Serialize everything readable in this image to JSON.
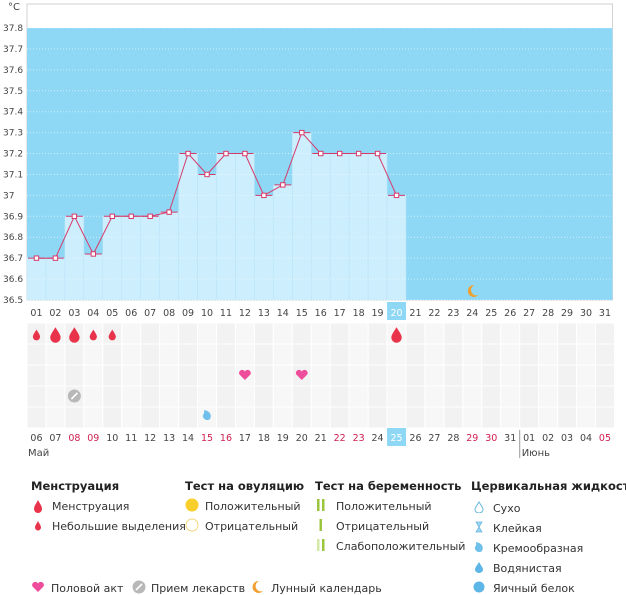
{
  "chart_data": {
    "type": "line",
    "unit": "°C",
    "ylim": [
      36.5,
      37.8
    ],
    "yticks": [
      "37.8",
      "37.7",
      "37.6",
      "37.5",
      "37.4",
      "37.3",
      "37.2",
      "37.1",
      "37",
      "36.9",
      "36.8",
      "36.7",
      "36.6",
      "36.5"
    ],
    "x_top": [
      "01",
      "02",
      "03",
      "04",
      "05",
      "06",
      "07",
      "08",
      "09",
      "10",
      "11",
      "12",
      "13",
      "14",
      "15",
      "16",
      "17",
      "18",
      "19",
      "20",
      "21",
      "22",
      "23",
      "24",
      "25",
      "26",
      "27",
      "28",
      "29",
      "30",
      "31"
    ],
    "x_bottom": [
      "06",
      "07",
      "08",
      "09",
      "10",
      "11",
      "12",
      "13",
      "14",
      "15",
      "16",
      "17",
      "18",
      "19",
      "20",
      "21",
      "22",
      "23",
      "24",
      "25",
      "26",
      "27",
      "28",
      "29",
      "30",
      "31",
      "01",
      "02",
      "03",
      "04",
      "05"
    ],
    "x_bottom_red": [
      2,
      3,
      9,
      10,
      16,
      17,
      23,
      24,
      30
    ],
    "x_top_highlight": 19,
    "x_bottom_highlight": 19,
    "series": [
      {
        "values": [
          36.7,
          36.7,
          36.9,
          36.72,
          36.9,
          36.9,
          36.9,
          36.92,
          37.2,
          37.1,
          37.2,
          37.2,
          37.0,
          37.05,
          37.3,
          37.2,
          37.2,
          37.2,
          37.2,
          37.0
        ]
      }
    ],
    "months": [
      "Май",
      "Июнь"
    ],
    "menstruation_days": [
      0,
      1,
      2,
      3,
      4,
      19
    ],
    "menstruation_large": [
      1,
      2,
      19
    ],
    "intercourse_days": [
      11,
      14
    ],
    "medication_days": [
      2
    ],
    "fluid_days": [
      9
    ],
    "moon_day": 23
  },
  "legend": {
    "menstruation": {
      "title": "Менструация",
      "items": [
        "Менструация",
        "Небольшие выделения"
      ]
    },
    "ovulation": {
      "title": "Тест на овуляцию",
      "items": [
        "Положительный",
        "Отрицательный"
      ]
    },
    "pregnancy": {
      "title": "Тест на беременность",
      "items": [
        "Положительный",
        "Отрицательный",
        "Слабоположительный"
      ]
    },
    "fluid": {
      "title": "Цервикальная жидкость",
      "items": [
        "Сухо",
        "Клейкая",
        "Кремообразная",
        "Водянистая",
        "Яичный белок"
      ]
    },
    "bottom": [
      "Половой акт",
      "Прием лекарств",
      "Лунный календарь"
    ]
  },
  "colors": {
    "plot_bg": "#8fd8f5",
    "bar": "#cdeefc",
    "line": "#d63a6b",
    "marker_red": "#e8334a",
    "heart": "#ee4d9b",
    "moon": "#f0a030",
    "highlight": "#8fd8f5"
  }
}
